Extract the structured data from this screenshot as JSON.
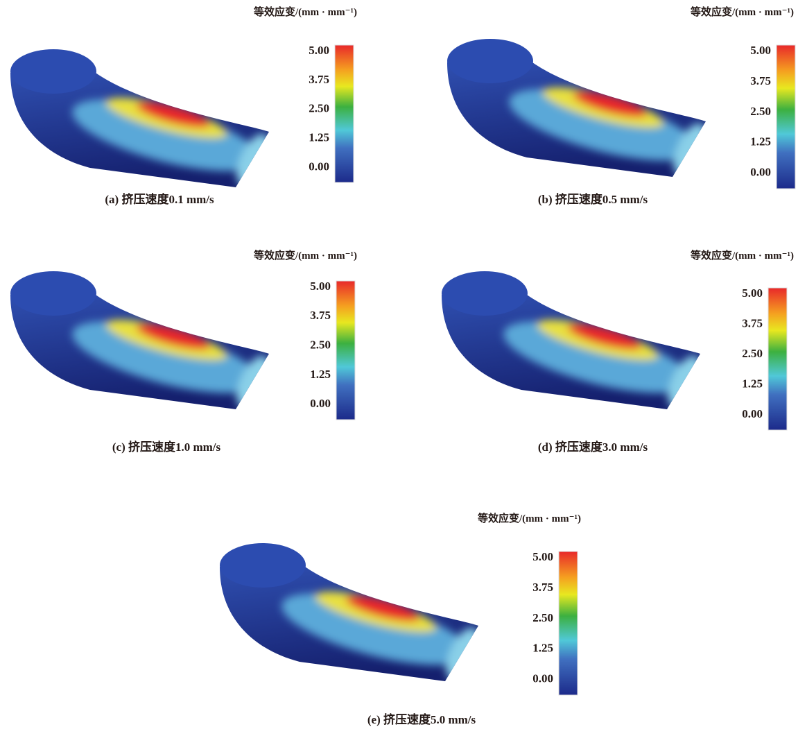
{
  "panels": [
    {
      "legend_title": "等效应变/(mm · mm⁻¹)",
      "ticks": [
        "5.00",
        "3.75",
        "2.50",
        "1.25",
        "0.00"
      ],
      "caption": "(a) 挤压速度0.1 mm/s"
    },
    {
      "legend_title": "等效应变/(mm · mm⁻¹)",
      "ticks": [
        "5.00",
        "3.75",
        "2.50",
        "1.25",
        "0.00"
      ],
      "caption": "(b) 挤压速度0.5 mm/s"
    },
    {
      "legend_title": "等效应变/(mm · mm⁻¹)",
      "ticks": [
        "5.00",
        "3.75",
        "2.50",
        "1.25",
        "0.00"
      ],
      "caption": "(c) 挤压速度1.0 mm/s"
    },
    {
      "legend_title": "等效应变/(mm · mm⁻¹)",
      "ticks": [
        "5.00",
        "3.75",
        "2.50",
        "1.25",
        "0.00"
      ],
      "caption": "(d) 挤压速度3.0 mm/s"
    },
    {
      "legend_title": "等效应变/(mm · mm⁻¹)",
      "ticks": [
        "5.00",
        "3.75",
        "2.50",
        "1.25",
        "0.00"
      ],
      "caption": "(e) 挤压速度5.0 mm/s"
    }
  ]
}
